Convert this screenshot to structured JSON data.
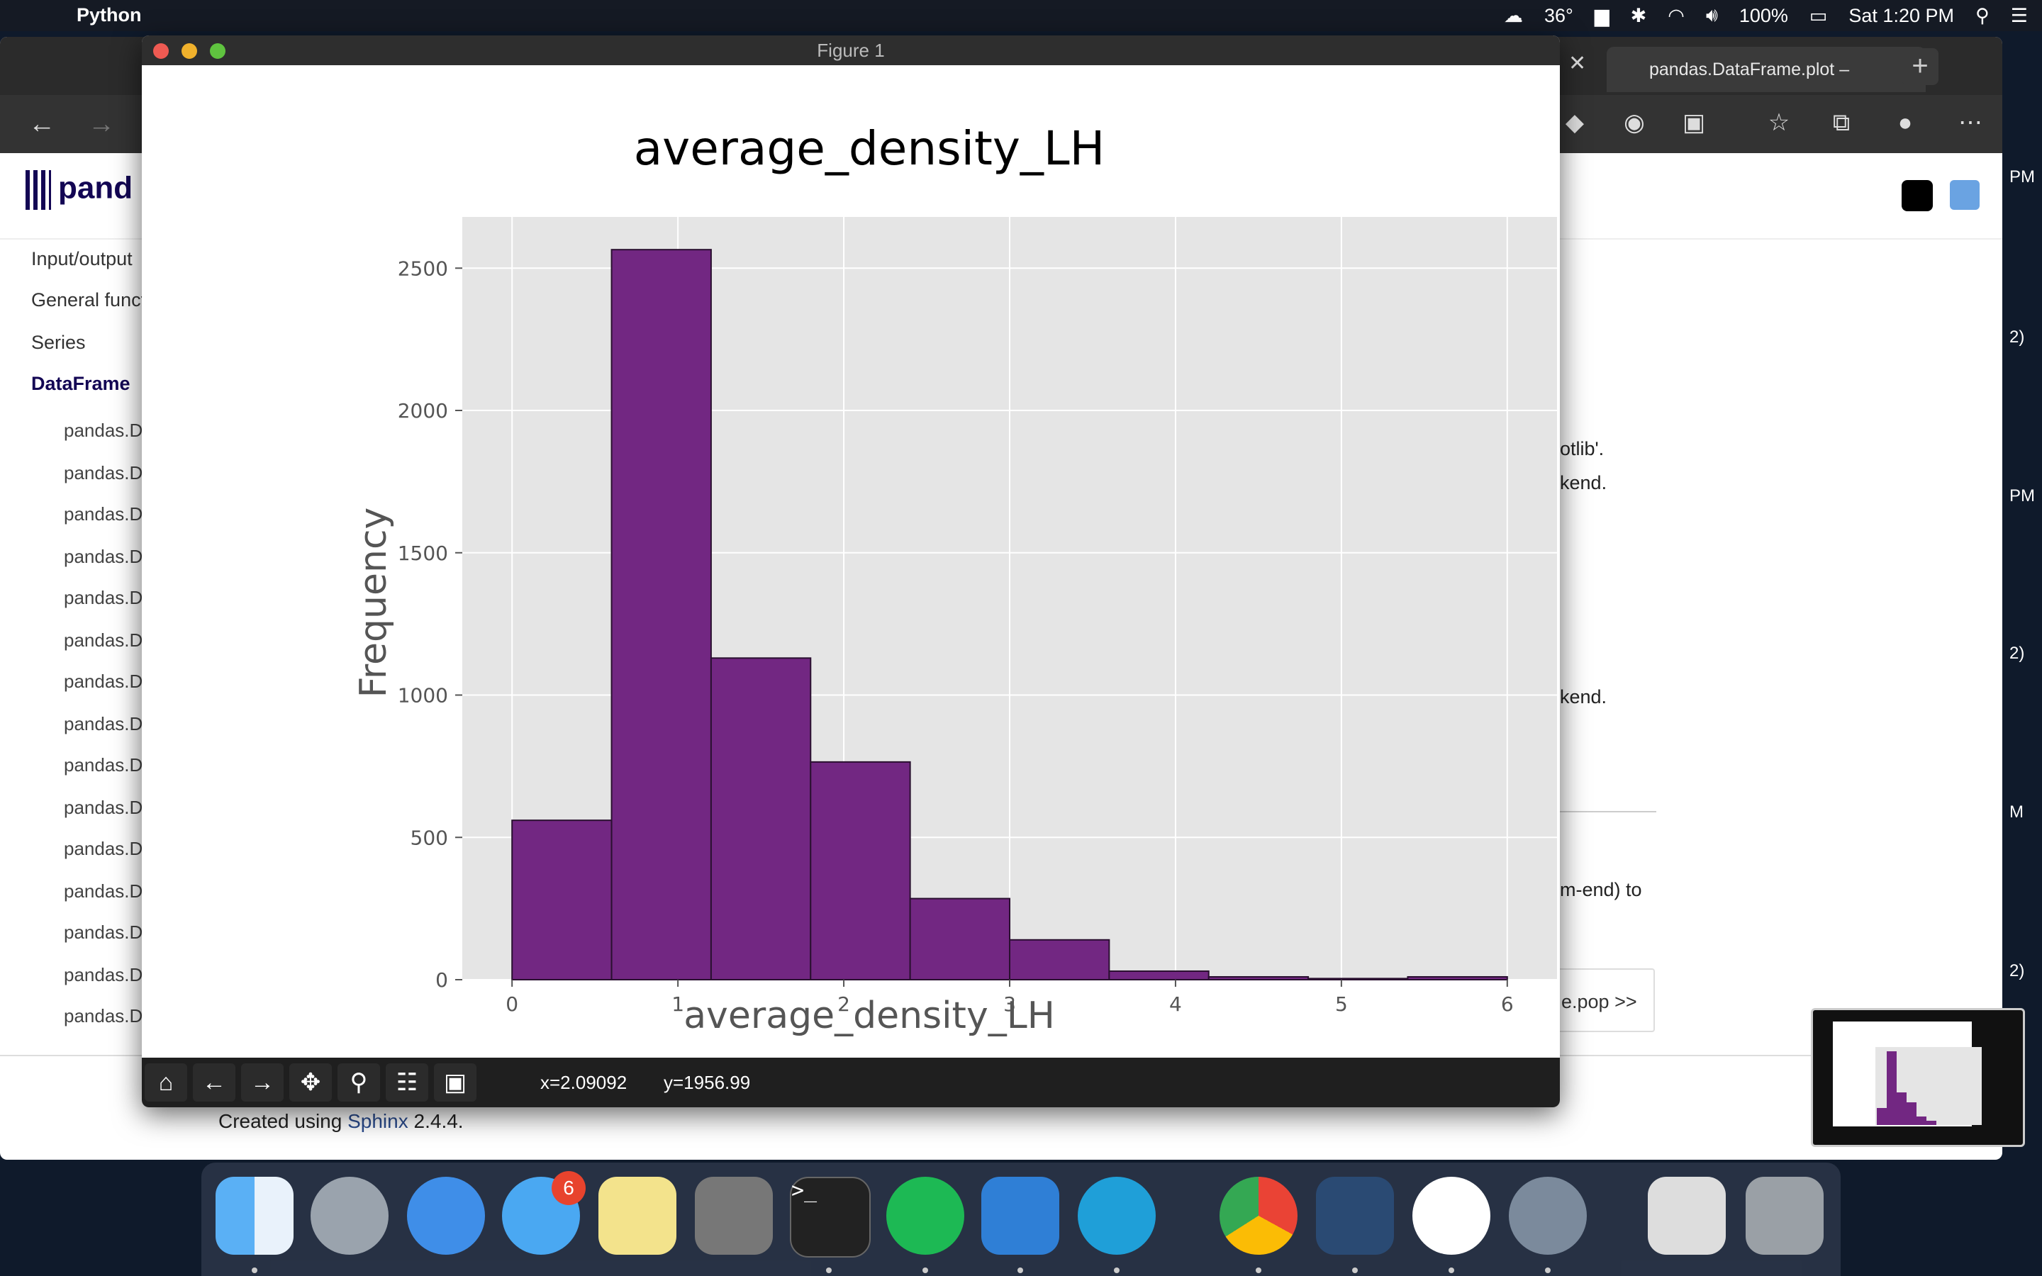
{
  "menubar": {
    "app_name": "Python",
    "temperature": "36°",
    "battery": "100%",
    "clock": "Sat 1:20 PM"
  },
  "browser": {
    "tab_title": "pandas.DataFrame.plot –",
    "logo_text": "pand",
    "sidebar": {
      "items": [
        "Input/output",
        "General funct",
        "Series",
        "DataFrame"
      ],
      "sub_items": [
        "pandas.D",
        "pandas.D",
        "pandas.D",
        "pandas.D",
        "pandas.D",
        "pandas.D",
        "pandas.D",
        "pandas.D",
        "pandas.D",
        "pandas.D",
        "pandas.D",
        "pandas.D",
        "pandas.D",
        "pandas.D",
        "pandas.D"
      ]
    },
    "content_fragments": {
      "f1": "otlib'.",
      "f2": "kend",
      "f2_period": ".",
      "f3": "kend.",
      "f4": "m-end) to",
      "next_button": "e.pop >>"
    },
    "footer": {
      "prefix": "Created using ",
      "sphinx": "Sphinx",
      "suffix": " 2.4.4."
    },
    "right_edge": [
      "PM",
      "2)",
      "PM",
      "2)",
      "M",
      "2)"
    ]
  },
  "figure": {
    "window_title": "Figure 1",
    "coords": {
      "x": "x=2.09092",
      "y": "y=1956.99"
    }
  },
  "chart_data": {
    "type": "bar",
    "title": "average_density_LH",
    "xlabel": "average_density_LH",
    "ylabel": "Frequency",
    "bin_edges": [
      0,
      0.6,
      1.2,
      1.8,
      2.4,
      3.0,
      3.6,
      4.2,
      4.8,
      5.4,
      6.0
    ],
    "values": [
      560,
      2565,
      1130,
      765,
      285,
      140,
      30,
      10,
      4,
      10
    ],
    "xlim": [
      -0.3,
      6.3
    ],
    "ylim": [
      0,
      2680
    ],
    "xticks": [
      0,
      1,
      2,
      3,
      4,
      5,
      6
    ],
    "yticks": [
      0,
      500,
      1000,
      1500,
      2000,
      2500
    ],
    "bar_color": "#722782",
    "bar_edge": "#2a1030",
    "plot_bg": "#e5e5e5",
    "grid": true
  },
  "dock": {
    "messages_badge": "6"
  }
}
